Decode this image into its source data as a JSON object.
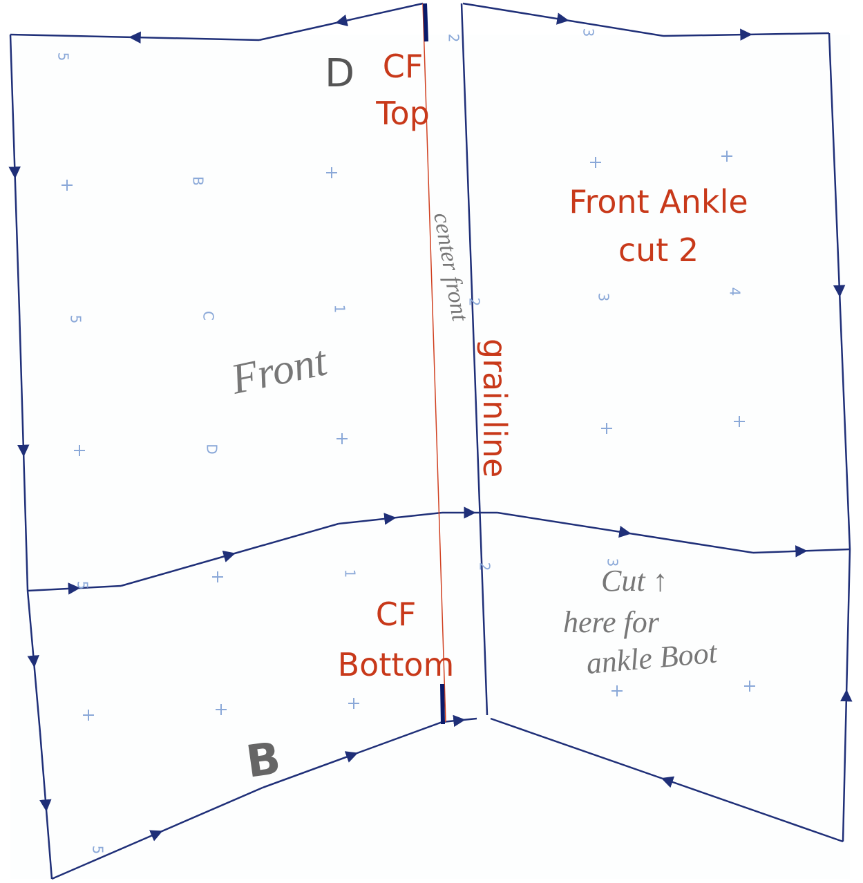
{
  "labels": {
    "cf_top": [
      "CF",
      "Top"
    ],
    "front_ankle": [
      "Front Ankle",
      "cut 2"
    ],
    "grainline": "grainline",
    "cf_bottom": [
      "CF",
      "Bottom"
    ]
  },
  "handwriting": {
    "front": "Front",
    "center_front": "center front",
    "cut_note": [
      "Cut ↑",
      "here for",
      "ankle Boot"
    ],
    "piece_top": "D",
    "piece_bottom": "B"
  },
  "markers": [
    "5",
    "B",
    "C",
    "D",
    "5",
    "1",
    "2",
    "2",
    "2",
    "3",
    "4",
    "3",
    "1",
    "5",
    "5",
    "3"
  ]
}
